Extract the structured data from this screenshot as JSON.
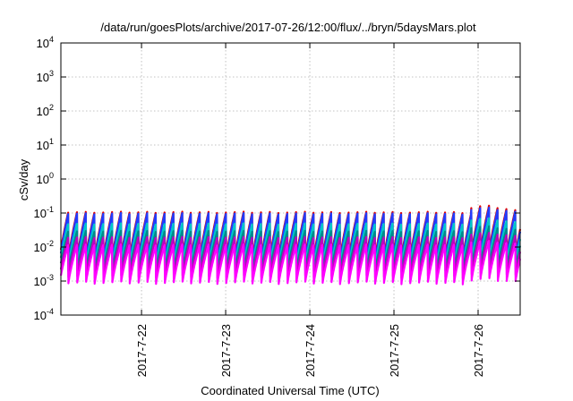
{
  "chart_data": {
    "type": "line",
    "title": "/data/run/goesPlots/archive/2017-07-26/12:00/flux/../bryn/5daysMars.plot",
    "xlabel": "Coordinated Universal Time (UTC)",
    "ylabel": "cSv/day",
    "y_scale": "log",
    "ylim": [
      0.0001,
      10000
    ],
    "xlim": [
      "2017-07-21 01:00",
      "2017-07-26 12:00"
    ],
    "grid": true,
    "legend": "none",
    "x_ticks": [
      "2017-7-22",
      "2017-7-23",
      "2017-7-24",
      "2017-7-25",
      "2017-7-26"
    ],
    "y_ticks": [
      {
        "base": "10",
        "exp": "-4"
      },
      {
        "base": "10",
        "exp": "-3"
      },
      {
        "base": "10",
        "exp": "-2"
      },
      {
        "base": "10",
        "exp": "-1"
      },
      {
        "base": "10",
        "exp": "0"
      },
      {
        "base": "10",
        "exp": "1"
      },
      {
        "base": "10",
        "exp": "2"
      },
      {
        "base": "10",
        "exp": "3"
      },
      {
        "base": "10",
        "exp": "4"
      }
    ],
    "pattern": {
      "description_of_shape": "sawtooth: rises over each cycle then drops sharply",
      "cycles_per_day": 9.6,
      "series_ranges_approx": [
        {
          "color": "#e00000",
          "min": 0.004,
          "max": 0.11
        },
        {
          "color": "#1f3cff",
          "min": 0.003,
          "max": 0.1
        },
        {
          "color": "#00c8c8",
          "min": 0.0025,
          "max": 0.05
        },
        {
          "color": "#008b8b",
          "min": 0.0018,
          "max": 0.03
        },
        {
          "color": "#c000c0",
          "min": 0.0012,
          "max": 0.02
        },
        {
          "color": "#ff00ff",
          "min": 0.0008,
          "max": 0.012
        }
      ],
      "late_period_bump": {
        "start": "2017-07-25 22:00",
        "peak": "2017-07-26 02:00",
        "peak_max": 0.17
      }
    }
  }
}
